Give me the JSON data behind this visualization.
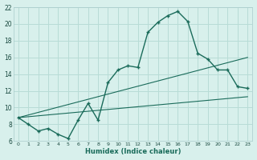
{
  "xlabel": "Humidex (Indice chaleur)",
  "bg_color": "#d8f0ec",
  "grid_color": "#b8dcd6",
  "line_color": "#1a6b5a",
  "xlim": [
    -0.5,
    23.5
  ],
  "ylim": [
    6,
    22
  ],
  "xticks": [
    0,
    1,
    2,
    3,
    4,
    5,
    6,
    7,
    8,
    9,
    10,
    11,
    12,
    13,
    14,
    15,
    16,
    17,
    18,
    19,
    20,
    21,
    22,
    23
  ],
  "yticks": [
    6,
    8,
    10,
    12,
    14,
    16,
    18,
    20,
    22
  ],
  "main_x": [
    0,
    1,
    2,
    3,
    4,
    5,
    6,
    7,
    8,
    9,
    10,
    11,
    12,
    13,
    14,
    15,
    16,
    17,
    18,
    19,
    20,
    21,
    22,
    23
  ],
  "main_y": [
    8.8,
    8.0,
    7.2,
    7.5,
    6.8,
    6.3,
    8.5,
    10.5,
    8.5,
    13.0,
    14.5,
    15.0,
    14.8,
    19.0,
    20.2,
    21.0,
    21.5,
    20.3,
    16.5,
    15.8,
    14.5,
    14.5,
    12.5,
    12.3
  ],
  "line2_x": [
    0,
    23
  ],
  "line2_y": [
    8.8,
    11.3
  ],
  "line3_x": [
    0,
    23
  ],
  "line3_y": [
    8.8,
    16.0
  ]
}
